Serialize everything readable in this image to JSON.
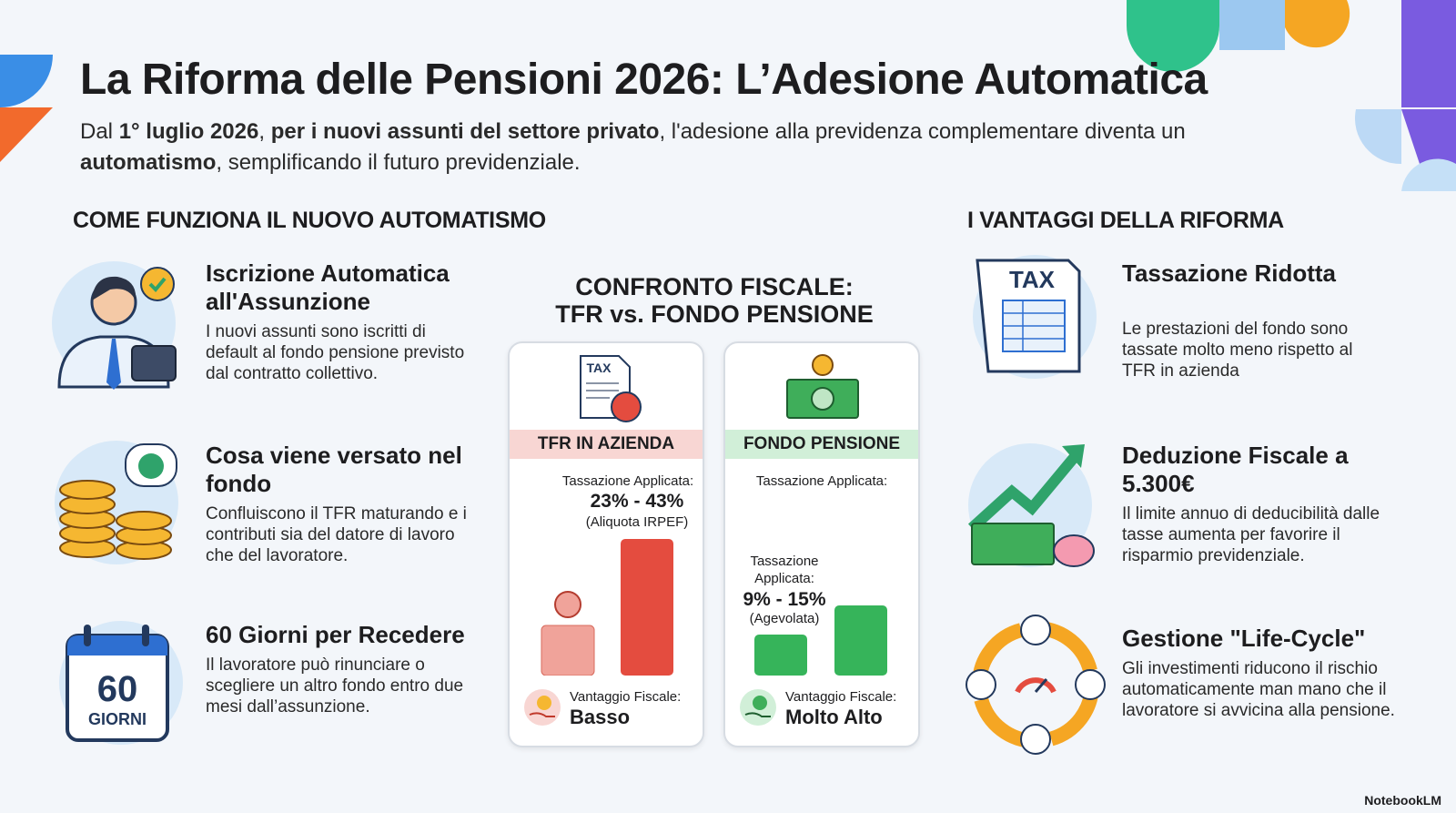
{
  "header": {
    "title": "La Riforma delle Pensioni 2026: L’Adesione Automatica",
    "subtitle": [
      "Dal ",
      "1° luglio 2026",
      ", ",
      "per i nuovi assunti del settore privato",
      ", l'adesione alla previdenza complementare diventa un ",
      "automatismo",
      ", semplificando il futuro previdenziale."
    ]
  },
  "left": {
    "title": "COME FUNZIONA IL NUOVO AUTOMATISMO",
    "items": [
      {
        "title": "Iscrizione Automatica all'Assunzione",
        "text": "I nuovi assunti sono iscritti di default al fondo pensione previsto dal contratto collettivo."
      },
      {
        "title": "Cosa viene versato nel fondo",
        "text": "Confluiscono il TFR maturando e i contributi sia del datore di lavoro che del lavoratore."
      },
      {
        "title": "60 Giorni per Recedere",
        "text": "Il lavoratore può rinunciare o scegliere un altro fondo entro due mesi dall’assunzione.",
        "icon_lines": [
          "60",
          "GIORNI"
        ]
      }
    ]
  },
  "center": {
    "title": [
      "CONFRONTO FISCALE:",
      "TFR vs. FONDO PENSIONE"
    ],
    "cards": [
      {
        "icon_label": "TAX",
        "header": "TFR IN AZIENDA",
        "tax_label": "Tassazione Applicata:",
        "tax_value": "23% - 43%",
        "tax_note": "(Aliquota IRPEF)",
        "advantage_label": "Vantaggio Fiscale:",
        "advantage": "Basso"
      },
      {
        "header": "FONDO PENSIONE",
        "top_label": "Tassazione Applicata:",
        "tax_label": "Tassazione Applicata:",
        "tax_value": "9% - 15%",
        "tax_note": "(Agevolata)",
        "advantage_label": "Vantaggio Fiscale:",
        "advantage": "Molto Alto"
      }
    ]
  },
  "right": {
    "title": "I VANTAGGI DELLA RIFORMA",
    "items": [
      {
        "title": "Tassazione Ridotta",
        "text": "Le prestazioni del fondo sono tassate molto meno rispetto al TFR in azienda",
        "icon_label": "TAX"
      },
      {
        "title": "Deduzione Fiscale a 5.300€",
        "text": "Il limite annuo di deducibilità dalle tasse aumenta per favorire il risparmio previdenziale."
      },
      {
        "title": "Gestione \"Life-Cycle\"",
        "text": "Gli investimenti riducono il rischio automaticamente man mano che il lavoratore si avvicina alla pensione."
      }
    ]
  },
  "footer": {
    "brand": "NotebookLM"
  }
}
